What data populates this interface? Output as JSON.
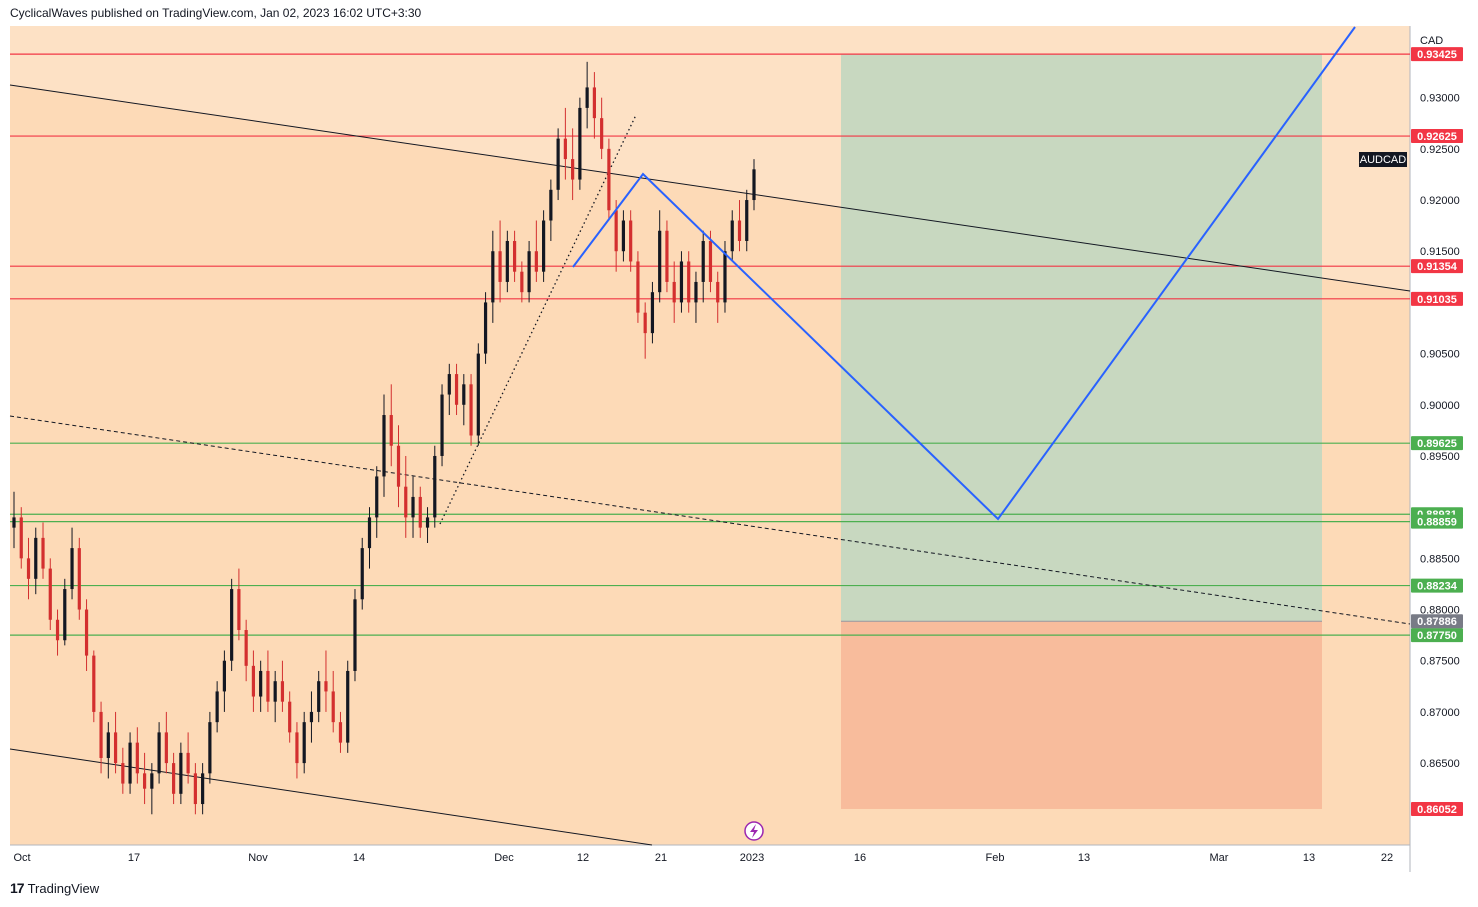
{
  "header": {
    "publish_line": "CyclicalWaves published on TradingView.com, Jan 02, 2023 16:02 UTC+3:30"
  },
  "footer": {
    "brand": "TradingView",
    "logo_icon": "tradingview-logo-icon"
  },
  "chart_data": {
    "type": "candlestick",
    "symbol": "AUDCAD",
    "currency": "CAD",
    "ylim": [
      0.857,
      0.937
    ],
    "y_ticks": [
      "0.93000",
      "0.92500",
      "0.92000",
      "0.91500",
      "0.90500",
      "0.90000",
      "0.89500",
      "0.88500",
      "0.88000",
      "0.87500",
      "0.87000",
      "0.86500"
    ],
    "x_ticks": [
      "Oct",
      "17",
      "Nov",
      "14",
      "Dec",
      "12",
      "21",
      "2023",
      "16",
      "Feb",
      "13",
      "Mar",
      "13",
      "22"
    ],
    "horizontal_levels": [
      {
        "price": 0.93425,
        "label": "0.93425",
        "color": "#f23645"
      },
      {
        "price": 0.92625,
        "label": "0.92625",
        "color": "#f23645"
      },
      {
        "price": 0.91354,
        "label": "0.91354",
        "color": "#f23645"
      },
      {
        "price": 0.91035,
        "label": "0.91035",
        "color": "#f23645"
      },
      {
        "price": 0.89625,
        "label": "0.89625",
        "color": "#4caf50"
      },
      {
        "price": 0.88931,
        "label": "0.88931",
        "color": "#4caf50"
      },
      {
        "price": 0.88859,
        "label": "0.88859",
        "color": "#4caf50"
      },
      {
        "price": 0.88234,
        "label": "0.88234",
        "color": "#4caf50"
      },
      {
        "price": 0.8775,
        "label": "0.87750",
        "color": "#4caf50"
      }
    ],
    "position": {
      "entry": 0.87886,
      "entry_label": "0.87886",
      "target": 0.93425,
      "stop": 0.86052,
      "stop_label": "0.86052",
      "profit_color": "#c8d8c0",
      "loss_color": "#f8bc9c"
    },
    "candles_ohlc": [
      [
        0.888,
        0.8915,
        0.886,
        0.889
      ],
      [
        0.889,
        0.89,
        0.884,
        0.885
      ],
      [
        0.885,
        0.887,
        0.881,
        0.883
      ],
      [
        0.883,
        0.888,
        0.8815,
        0.887
      ],
      [
        0.887,
        0.8885,
        0.883,
        0.884
      ],
      [
        0.884,
        0.885,
        0.878,
        0.879
      ],
      [
        0.879,
        0.88,
        0.8755,
        0.877
      ],
      [
        0.877,
        0.883,
        0.8765,
        0.882
      ],
      [
        0.882,
        0.888,
        0.881,
        0.886
      ],
      [
        0.886,
        0.887,
        0.879,
        0.88
      ],
      [
        0.88,
        0.881,
        0.874,
        0.8755
      ],
      [
        0.8755,
        0.876,
        0.869,
        0.87
      ],
      [
        0.87,
        0.871,
        0.864,
        0.8655
      ],
      [
        0.8655,
        0.869,
        0.8635,
        0.868
      ],
      [
        0.868,
        0.87,
        0.864,
        0.865
      ],
      [
        0.865,
        0.8665,
        0.862,
        0.863
      ],
      [
        0.863,
        0.868,
        0.862,
        0.867
      ],
      [
        0.867,
        0.8685,
        0.863,
        0.864
      ],
      [
        0.864,
        0.866,
        0.861,
        0.8625
      ],
      [
        0.8625,
        0.865,
        0.86,
        0.864
      ],
      [
        0.864,
        0.869,
        0.863,
        0.868
      ],
      [
        0.868,
        0.87,
        0.864,
        0.865
      ],
      [
        0.865,
        0.866,
        0.861,
        0.862
      ],
      [
        0.862,
        0.867,
        0.861,
        0.866
      ],
      [
        0.866,
        0.868,
        0.863,
        0.864
      ],
      [
        0.864,
        0.865,
        0.86,
        0.861
      ],
      [
        0.861,
        0.865,
        0.86,
        0.864
      ],
      [
        0.864,
        0.87,
        0.863,
        0.869
      ],
      [
        0.869,
        0.873,
        0.868,
        0.872
      ],
      [
        0.872,
        0.876,
        0.87,
        0.875
      ],
      [
        0.875,
        0.883,
        0.874,
        0.882
      ],
      [
        0.882,
        0.884,
        0.877,
        0.878
      ],
      [
        0.878,
        0.879,
        0.873,
        0.8745
      ],
      [
        0.8745,
        0.876,
        0.87,
        0.8715
      ],
      [
        0.8715,
        0.875,
        0.87,
        0.874
      ],
      [
        0.874,
        0.876,
        0.87,
        0.871
      ],
      [
        0.871,
        0.874,
        0.869,
        0.873
      ],
      [
        0.873,
        0.875,
        0.87,
        0.871
      ],
      [
        0.871,
        0.872,
        0.867,
        0.868
      ],
      [
        0.868,
        0.869,
        0.8635,
        0.865
      ],
      [
        0.865,
        0.87,
        0.864,
        0.869
      ],
      [
        0.869,
        0.872,
        0.867,
        0.87
      ],
      [
        0.87,
        0.874,
        0.869,
        0.873
      ],
      [
        0.873,
        0.876,
        0.87,
        0.872
      ],
      [
        0.872,
        0.874,
        0.868,
        0.869
      ],
      [
        0.869,
        0.87,
        0.866,
        0.867
      ],
      [
        0.867,
        0.875,
        0.866,
        0.874
      ],
      [
        0.874,
        0.882,
        0.873,
        0.881
      ],
      [
        0.881,
        0.887,
        0.88,
        0.886
      ],
      [
        0.886,
        0.89,
        0.884,
        0.889
      ],
      [
        0.889,
        0.894,
        0.887,
        0.893
      ],
      [
        0.893,
        0.901,
        0.891,
        0.899
      ],
      [
        0.899,
        0.902,
        0.894,
        0.896
      ],
      [
        0.896,
        0.898,
        0.89,
        0.892
      ],
      [
        0.892,
        0.895,
        0.887,
        0.889
      ],
      [
        0.889,
        0.893,
        0.887,
        0.891
      ],
      [
        0.891,
        0.892,
        0.887,
        0.888
      ],
      [
        0.888,
        0.89,
        0.8865,
        0.889
      ],
      [
        0.889,
        0.896,
        0.888,
        0.895
      ],
      [
        0.895,
        0.902,
        0.894,
        0.901
      ],
      [
        0.901,
        0.904,
        0.899,
        0.903
      ],
      [
        0.903,
        0.904,
        0.899,
        0.9
      ],
      [
        0.9,
        0.903,
        0.898,
        0.902
      ],
      [
        0.902,
        0.903,
        0.896,
        0.897
      ],
      [
        0.897,
        0.906,
        0.896,
        0.905
      ],
      [
        0.905,
        0.911,
        0.904,
        0.91
      ],
      [
        0.91,
        0.917,
        0.908,
        0.915
      ],
      [
        0.915,
        0.918,
        0.91,
        0.912
      ],
      [
        0.912,
        0.917,
        0.911,
        0.916
      ],
      [
        0.916,
        0.917,
        0.912,
        0.913
      ],
      [
        0.913,
        0.914,
        0.91,
        0.911
      ],
      [
        0.911,
        0.916,
        0.91,
        0.915
      ],
      [
        0.915,
        0.918,
        0.912,
        0.913
      ],
      [
        0.913,
        0.919,
        0.912,
        0.918
      ],
      [
        0.918,
        0.922,
        0.916,
        0.921
      ],
      [
        0.921,
        0.927,
        0.92,
        0.926
      ],
      [
        0.926,
        0.929,
        0.922,
        0.924
      ],
      [
        0.924,
        0.927,
        0.92,
        0.922
      ],
      [
        0.922,
        0.93,
        0.921,
        0.929
      ],
      [
        0.929,
        0.9335,
        0.927,
        0.931
      ],
      [
        0.931,
        0.9325,
        0.926,
        0.928
      ],
      [
        0.928,
        0.93,
        0.924,
        0.925
      ],
      [
        0.925,
        0.926,
        0.918,
        0.919
      ],
      [
        0.919,
        0.92,
        0.913,
        0.915
      ],
      [
        0.915,
        0.919,
        0.914,
        0.918
      ],
      [
        0.918,
        0.919,
        0.913,
        0.914
      ],
      [
        0.914,
        0.915,
        0.908,
        0.909
      ],
      [
        0.909,
        0.91,
        0.9045,
        0.907
      ],
      [
        0.907,
        0.912,
        0.906,
        0.911
      ],
      [
        0.911,
        0.919,
        0.91,
        0.917
      ],
      [
        0.917,
        0.918,
        0.911,
        0.912
      ],
      [
        0.912,
        0.914,
        0.908,
        0.91
      ],
      [
        0.91,
        0.915,
        0.909,
        0.914
      ],
      [
        0.914,
        0.915,
        0.909,
        0.91
      ],
      [
        0.91,
        0.913,
        0.908,
        0.912
      ],
      [
        0.912,
        0.917,
        0.91,
        0.916
      ],
      [
        0.916,
        0.917,
        0.911,
        0.912
      ],
      [
        0.912,
        0.913,
        0.908,
        0.91
      ],
      [
        0.91,
        0.916,
        0.909,
        0.915
      ],
      [
        0.915,
        0.919,
        0.914,
        0.918
      ],
      [
        0.918,
        0.92,
        0.915,
        0.916
      ],
      [
        0.916,
        0.921,
        0.915,
        0.92
      ],
      [
        0.92,
        0.924,
        0.919,
        0.923
      ]
    ],
    "annotations": {
      "symbol_tag": "AUDCAD",
      "event_icon": "lightning-icon"
    }
  }
}
